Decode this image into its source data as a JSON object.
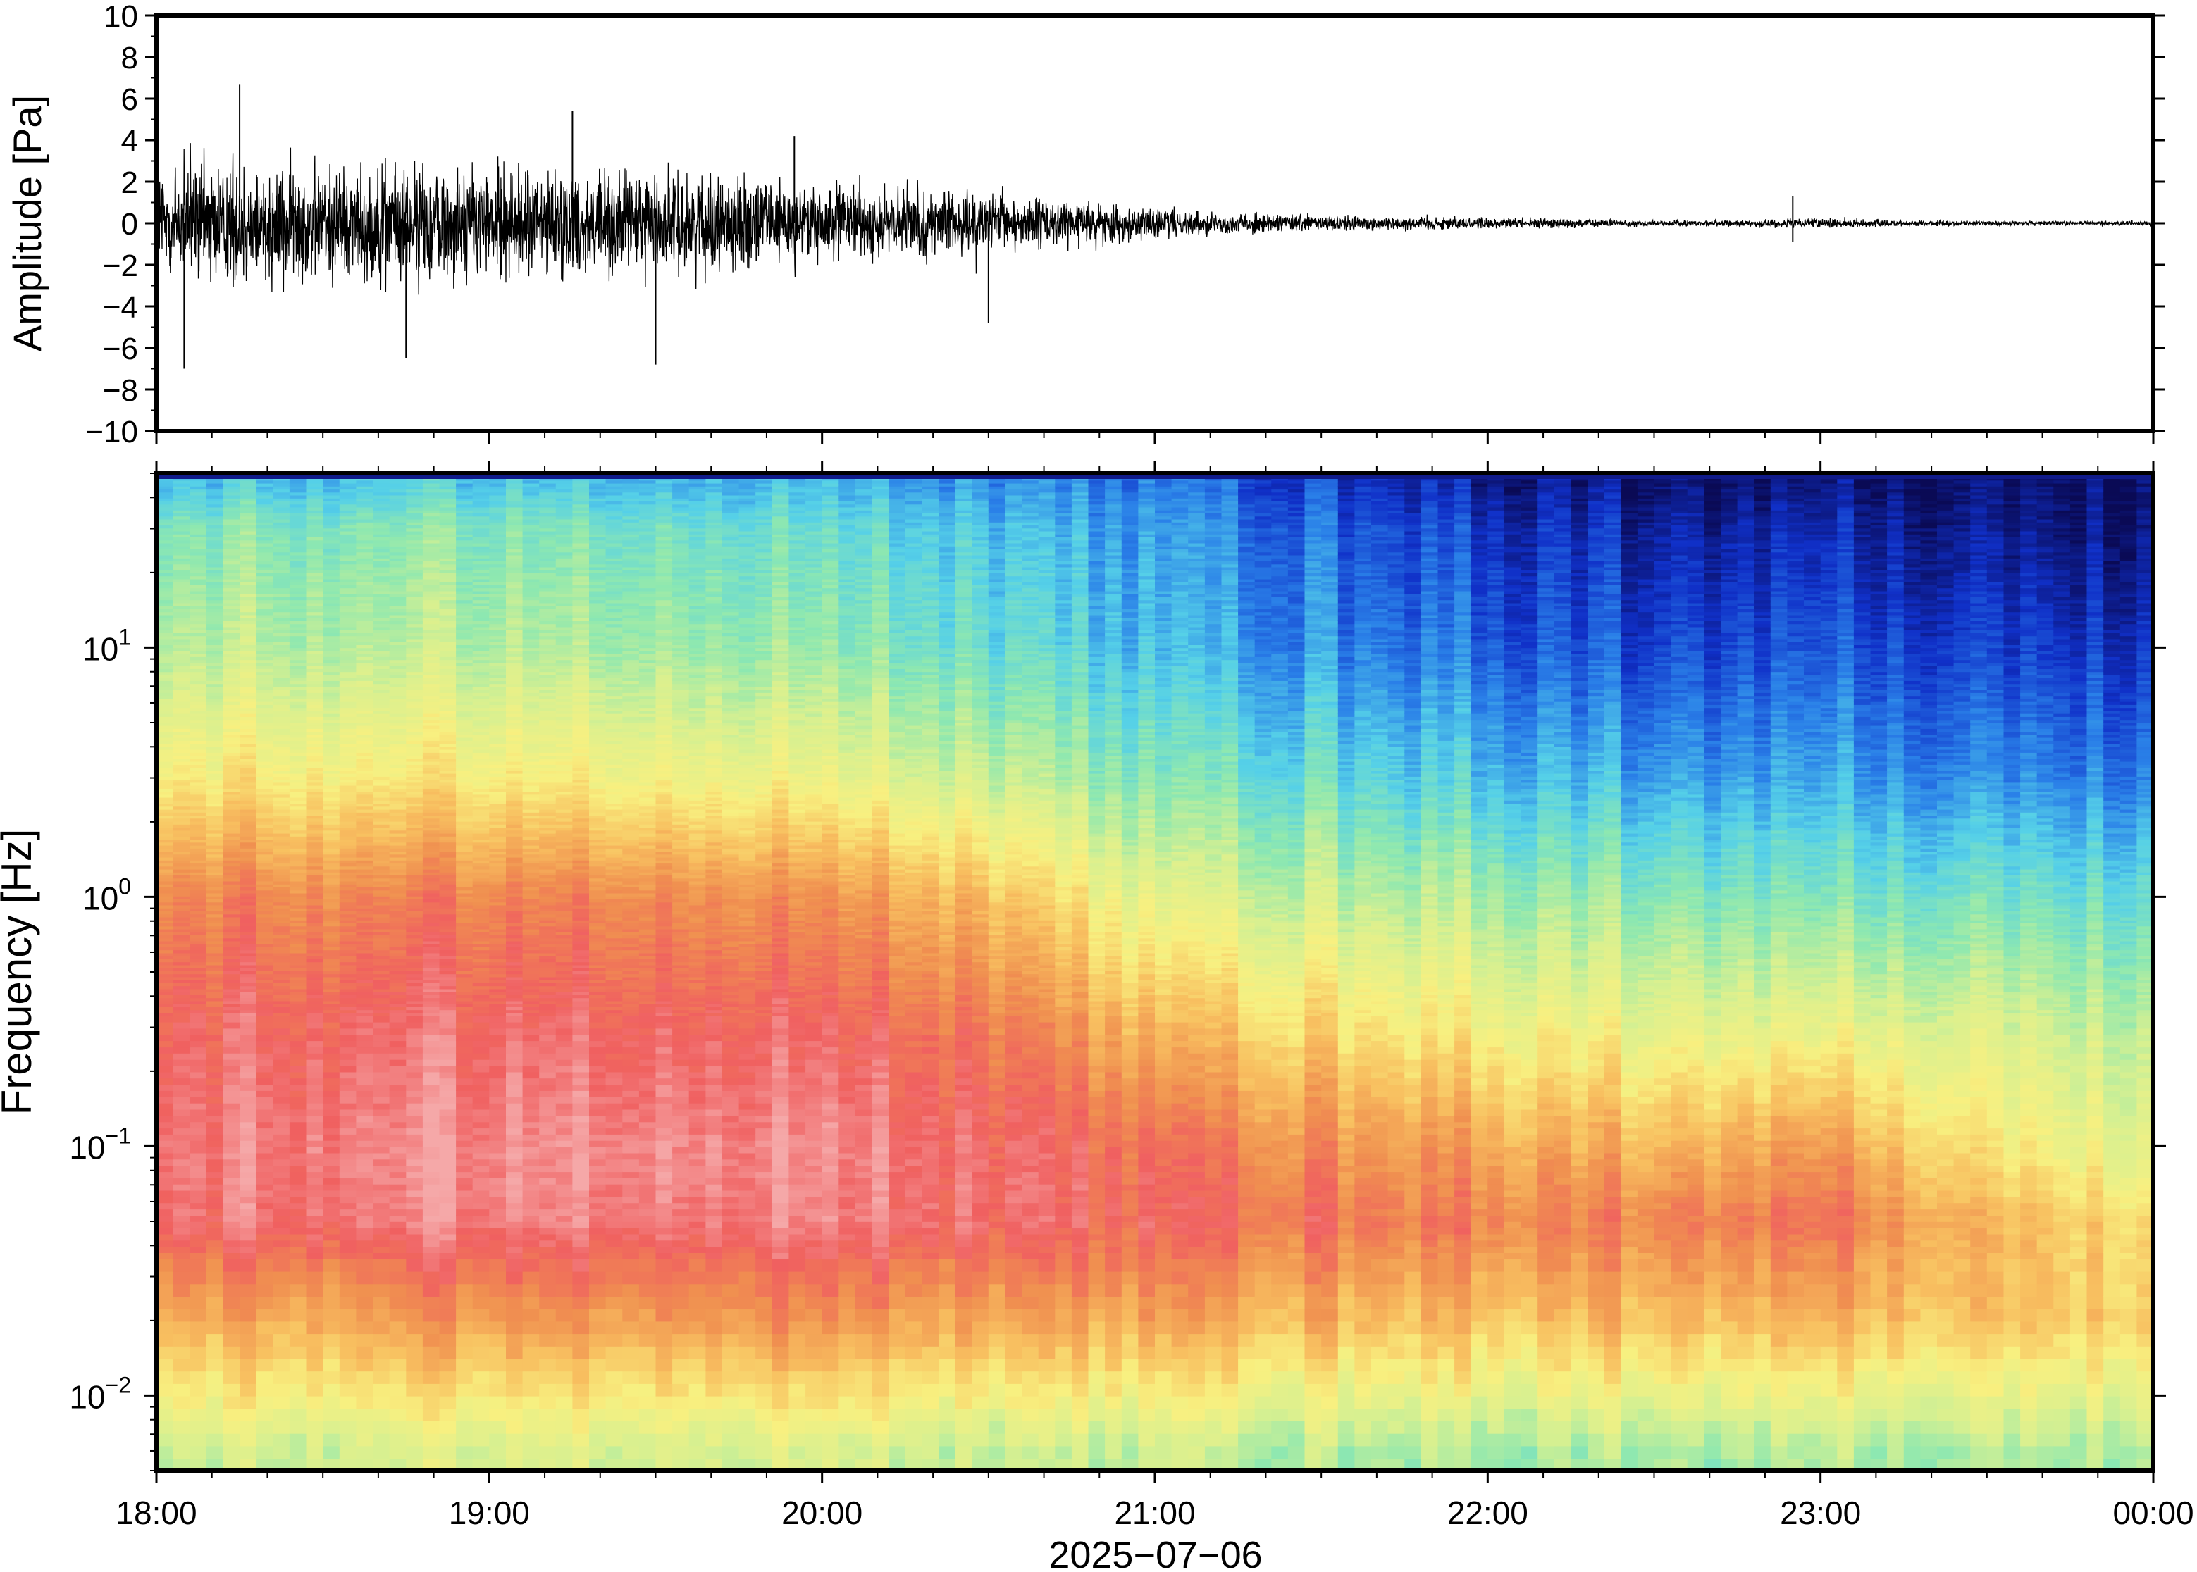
{
  "chart_data": [
    {
      "type": "line",
      "ylabel": "Amplitude [Pa]",
      "ylim": [
        -10,
        10
      ],
      "yticks": [
        -10,
        -8,
        -6,
        -4,
        -2,
        0,
        2,
        4,
        6,
        8,
        10
      ],
      "ytick_labels": [
        "−10",
        "−8",
        "−6",
        "−4",
        "−2",
        "0",
        "2",
        "4",
        "6",
        "8",
        "10"
      ],
      "xlim": [
        "18:00",
        "00:00"
      ],
      "grid": false,
      "line_color": "#000000",
      "envelope": {
        "x": [
          "18:00",
          "18:15",
          "18:30",
          "18:45",
          "19:00",
          "19:15",
          "19:30",
          "19:45",
          "20:00",
          "20:15",
          "20:30",
          "20:45",
          "21:00",
          "21:15",
          "21:30",
          "21:45",
          "22:00",
          "22:15",
          "22:30",
          "22:45",
          "23:00",
          "23:15",
          "23:30",
          "23:45",
          "00:00"
        ],
        "values": [
          4.5,
          4.3,
          4.0,
          3.9,
          3.8,
          3.6,
          3.4,
          3.0,
          2.6,
          2.2,
          1.9,
          1.5,
          1.0,
          0.7,
          0.55,
          0.5,
          0.4,
          0.3,
          0.2,
          0.2,
          0.35,
          0.2,
          0.15,
          0.15,
          0.15
        ]
      },
      "peaks": [
        {
          "x": "18:15",
          "value": 6.7
        },
        {
          "x": "18:05",
          "value": -7.0
        },
        {
          "x": "18:45",
          "value": -6.5
        },
        {
          "x": "19:15",
          "value": 5.4
        },
        {
          "x": "19:30",
          "value": -6.8
        },
        {
          "x": "19:55",
          "value": 4.2
        },
        {
          "x": "20:30",
          "value": -4.8
        },
        {
          "x": "22:55",
          "value": 1.3
        },
        {
          "x": "22:55",
          "value": -0.9
        }
      ]
    },
    {
      "type": "heatmap",
      "ylabel": "Frequency [Hz]",
      "xlabel": "2025−07−06",
      "yscale": "log",
      "ylim": [
        0.005,
        50
      ],
      "yticks": [
        0.01,
        0.1,
        1,
        10
      ],
      "ytick_labels": [
        {
          "base": "10",
          "exp": "−2"
        },
        {
          "base": "10",
          "exp": "−1"
        },
        {
          "base": "10",
          "exp": "0"
        },
        {
          "base": "10",
          "exp": "1"
        }
      ],
      "xticks": [
        "18:00",
        "19:00",
        "20:00",
        "21:00",
        "22:00",
        "23:00",
        "00:00"
      ],
      "colormap": [
        "#0a0a55",
        "#1030c8",
        "#2a80e8",
        "#55d0e8",
        "#8ee8b0",
        "#d8f090",
        "#f8f080",
        "#f8c060",
        "#f09050",
        "#f06060",
        "#f5a8a8"
      ],
      "relative_power": {
        "x": [
          "18:00",
          "18:30",
          "19:00",
          "19:30",
          "20:00",
          "20:30",
          "21:00",
          "21:30",
          "22:00",
          "22:30",
          "23:00",
          "23:30",
          "00:00"
        ],
        "y": [
          0.006,
          0.02,
          0.05,
          0.1,
          0.3,
          1,
          3,
          10,
          30,
          45
        ],
        "values": [
          [
            0.5,
            0.51,
            0.52,
            0.51,
            0.5,
            0.49,
            0.47,
            0.45,
            0.45,
            0.44,
            0.45,
            0.43,
            0.44
          ],
          [
            0.75,
            0.76,
            0.78,
            0.78,
            0.78,
            0.76,
            0.74,
            0.72,
            0.71,
            0.71,
            0.72,
            0.68,
            0.66
          ],
          [
            0.93,
            0.94,
            0.95,
            0.95,
            0.94,
            0.93,
            0.88,
            0.86,
            0.84,
            0.83,
            0.86,
            0.7,
            0.63
          ],
          [
            0.95,
            0.96,
            0.97,
            0.97,
            0.95,
            0.93,
            0.85,
            0.8,
            0.77,
            0.72,
            0.78,
            0.6,
            0.52
          ],
          [
            0.91,
            0.92,
            0.92,
            0.91,
            0.89,
            0.86,
            0.7,
            0.65,
            0.6,
            0.55,
            0.55,
            0.5,
            0.45
          ],
          [
            0.83,
            0.83,
            0.83,
            0.82,
            0.78,
            0.72,
            0.52,
            0.48,
            0.45,
            0.4,
            0.38,
            0.35,
            0.33
          ],
          [
            0.62,
            0.62,
            0.61,
            0.59,
            0.55,
            0.5,
            0.37,
            0.34,
            0.3,
            0.25,
            0.25,
            0.2,
            0.19
          ],
          [
            0.47,
            0.47,
            0.46,
            0.44,
            0.4,
            0.36,
            0.26,
            0.22,
            0.18,
            0.13,
            0.15,
            0.1,
            0.09
          ],
          [
            0.4,
            0.4,
            0.39,
            0.37,
            0.33,
            0.3,
            0.22,
            0.17,
            0.12,
            0.07,
            0.08,
            0.03,
            0.02
          ],
          [
            0.3,
            0.3,
            0.3,
            0.28,
            0.26,
            0.24,
            0.18,
            0.12,
            0.07,
            0.03,
            0.03,
            0.01,
            0.01
          ]
        ]
      }
    }
  ]
}
